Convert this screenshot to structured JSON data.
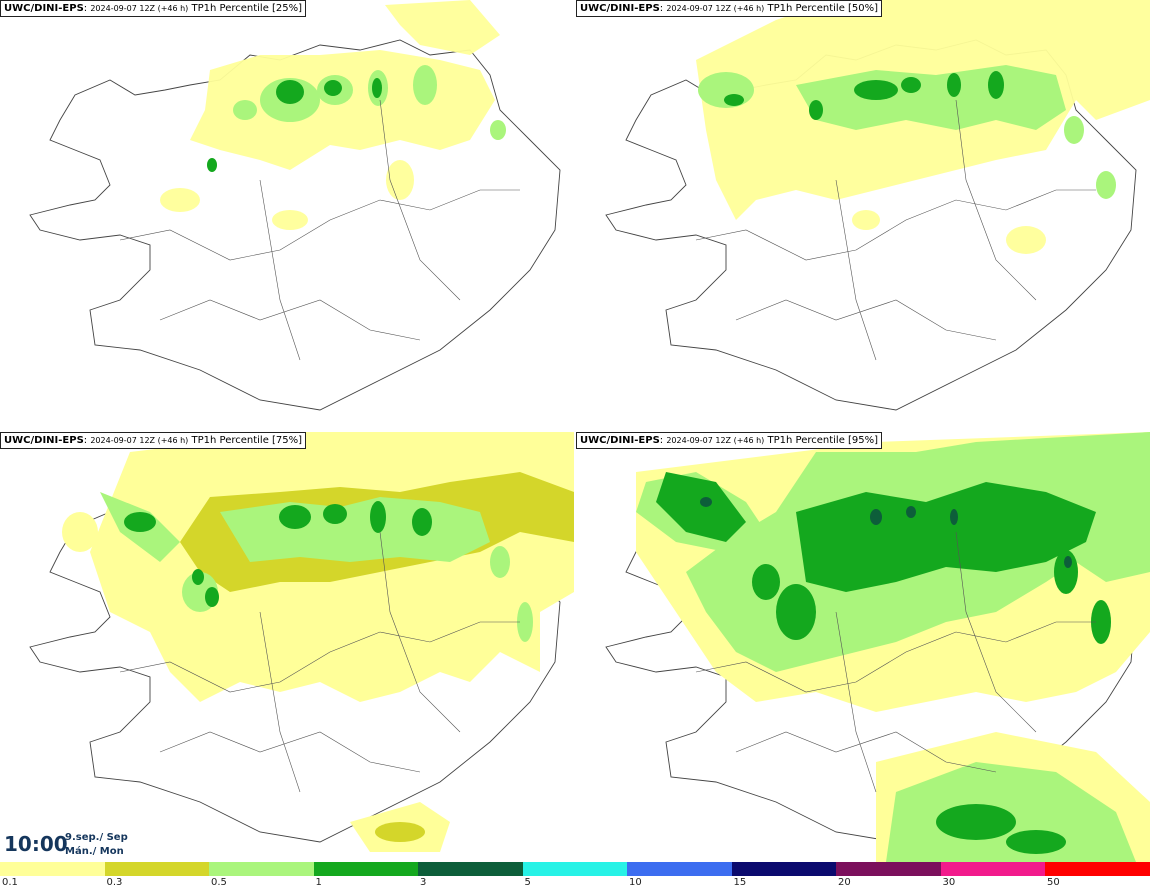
{
  "panels": [
    {
      "model": "UWC/DINI-EPS",
      "run": "2024-09-07 12Z (+46 h)",
      "field": "TP1h Percentile [25%]"
    },
    {
      "model": "UWC/DINI-EPS",
      "run": "2024-09-07 12Z (+46 h)",
      "field": "TP1h Percentile [50%]"
    },
    {
      "model": "UWC/DINI-EPS",
      "run": "2024-09-07 12Z (+46 h)",
      "field": "TP1h Percentile [75%]"
    },
    {
      "model": "UWC/DINI-EPS",
      "run": "2024-09-07 12Z (+46 h)",
      "field": "TP1h Percentile [95%]"
    }
  ],
  "valid": {
    "time": "10:00",
    "date_line1": "9.sep./ Sep",
    "date_line2": "Mán./ Mon"
  },
  "legend": {
    "ticks": [
      "0.1",
      "0.3",
      "0.5",
      "1",
      "3",
      "5",
      "10",
      "15",
      "20",
      "30",
      "50"
    ],
    "colors": [
      "#ffff99",
      "#d4d62a",
      "#aaf57c",
      "#14a81e",
      "#0d5e3a",
      "#27f2e6",
      "#3c6df0",
      "#0b0a6e",
      "#7b0f5c",
      "#f21a8c",
      "#ff0000"
    ]
  }
}
